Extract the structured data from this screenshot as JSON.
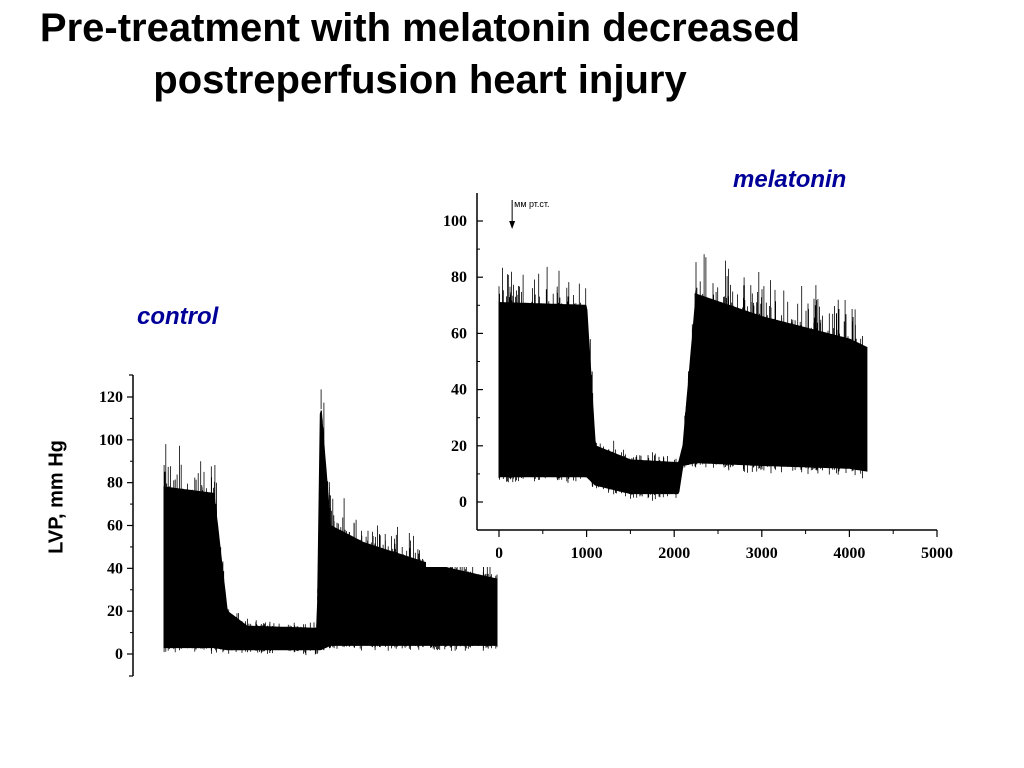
{
  "slide": {
    "title": "Pre-treatment with melatonin decreased postreperfusion heart injury"
  },
  "colors": {
    "label": "#000099",
    "trace": "#000000",
    "background": "#ffffff"
  },
  "chart_data": [
    {
      "name": "melatonin",
      "type": "line",
      "label": "melatonin",
      "xlabel": "",
      "ylabel": "",
      "xlim": [
        0,
        5000
      ],
      "ylim": [
        -10,
        110
      ],
      "xticks": [
        0,
        1000,
        2000,
        3000,
        4000,
        5000
      ],
      "yticks": [
        0,
        20,
        40,
        60,
        80,
        100
      ],
      "annotation": "мм рт.ст.",
      "annotation_x": 150,
      "envelope_x": [
        0,
        1000,
        1100,
        1500,
        2050,
        2100,
        2250,
        3000,
        4000,
        4200
      ],
      "envelope_top": [
        71,
        70,
        20,
        15,
        14,
        20,
        74,
        66,
        58,
        55
      ],
      "envelope_bottom": [
        9,
        9,
        6,
        3,
        3,
        13,
        14,
        13,
        12,
        11
      ]
    },
    {
      "name": "control",
      "type": "line",
      "label": "control",
      "xlabel": "",
      "ylabel": "LVP, mm Hg",
      "ylim": [
        -10,
        130
      ],
      "yticks": [
        0,
        20,
        40,
        60,
        80,
        100,
        120
      ],
      "envelope_x": [
        0,
        0.15,
        0.19,
        0.25,
        0.46,
        0.47,
        0.5,
        0.6,
        0.8,
        1.0
      ],
      "envelope_top": [
        78,
        75,
        20,
        13,
        12,
        118,
        60,
        52,
        42,
        35
      ],
      "envelope_bottom": [
        3,
        3,
        2,
        2,
        2,
        2,
        4,
        4,
        4,
        4
      ]
    }
  ]
}
